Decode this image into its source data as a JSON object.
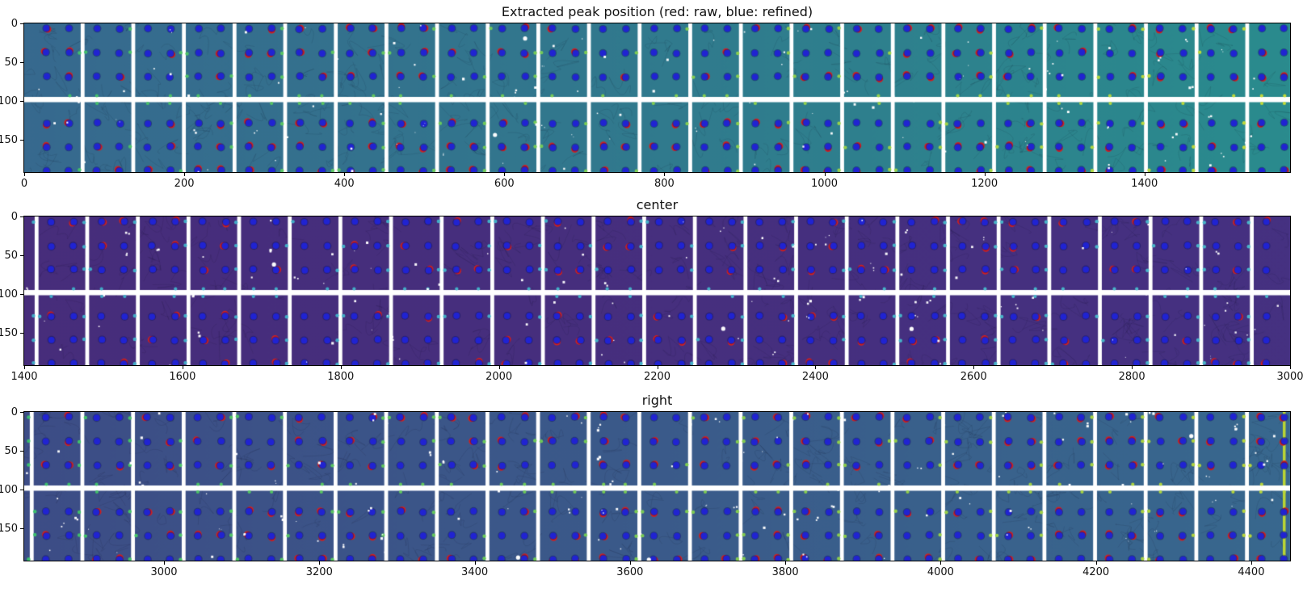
{
  "figure": {
    "background": "#ffffff"
  },
  "chart_data": {
    "type": "heatmap",
    "description": "Three-row detector-module image montage with extracted diffraction peak positions overlaid as dots",
    "legend": {
      "raw_label": "red: raw",
      "refined_label": "blue: refined"
    },
    "marker_colors": {
      "raw": "#d42020",
      "refined": "#2023d2",
      "hot_pixel": "#ffffff"
    },
    "plots": [
      {
        "title": "Extracted peak position (red: raw, blue: refined)",
        "x_ticks": [
          "0",
          "200",
          "400",
          "600",
          "800",
          "1000",
          "1200",
          "1400"
        ],
        "x_tick_values": [
          0,
          200,
          400,
          600,
          800,
          1000,
          1200,
          1400
        ],
        "x_range": [
          0,
          1582
        ],
        "y_ticks": [
          "0",
          "50",
          "100",
          "150"
        ],
        "y_tick_values": [
          0,
          50,
          100,
          150
        ],
        "y_range": [
          0,
          192
        ],
        "colors": {
          "bg_left": "#37698e",
          "bg_right": "#2a8b8d",
          "edge_dot_left": "#3cbe6e",
          "edge_dot_right": "#c4da38"
        },
        "seed": 7,
        "panel_offset": 12,
        "red_prob": 0.45,
        "edge_prob_right": 0.45,
        "edge_prob_left": 0.25,
        "speckles": 110,
        "right_stripe": false
      },
      {
        "title": "center",
        "x_ticks": [
          "1400",
          "1600",
          "1800",
          "2000",
          "2200",
          "2400",
          "2600",
          "2800",
          "3000"
        ],
        "x_tick_values": [
          1400,
          1600,
          1800,
          2000,
          2200,
          2400,
          2600,
          2800,
          3000
        ],
        "x_range": [
          1400,
          3000
        ],
        "y_ticks": [
          "0",
          "50",
          "100",
          "150"
        ],
        "y_tick_values": [
          0,
          50,
          100,
          150
        ],
        "y_range": [
          0,
          192
        ],
        "colors": {
          "bg_left": "#472d7b",
          "bg_right": "#453181",
          "edge_dot_left": "#3fa9c6",
          "edge_dot_right": "#49b6c9"
        },
        "seed": 13,
        "panel_offset": -45,
        "red_prob": 0.35,
        "edge_prob_right": 0.75,
        "edge_prob_left": 0.2,
        "speckles": 100,
        "right_stripe": false
      },
      {
        "title": "right",
        "x_ticks": [
          "3000",
          "3200",
          "3400",
          "3600",
          "3800",
          "4000",
          "4200",
          "4400"
        ],
        "x_tick_values": [
          3000,
          3200,
          3400,
          3600,
          3800,
          4000,
          4200,
          4400
        ],
        "x_range": [
          2820,
          4450
        ],
        "y_ticks": [
          "0",
          "50",
          "100",
          "150"
        ],
        "y_tick_values": [
          0,
          50,
          100,
          150
        ],
        "y_range": [
          0,
          192
        ],
        "colors": {
          "bg_left": "#3d4d86",
          "bg_right": "#38688e",
          "edge_dot_left": "#3abf6d",
          "edge_dot_right": "#b9d53a"
        },
        "seed": 29,
        "panel_offset": -51,
        "red_prob": 0.5,
        "edge_prob_right": 0.6,
        "edge_prob_left": 0.25,
        "speckles": 115,
        "right_stripe": true
      }
    ]
  }
}
